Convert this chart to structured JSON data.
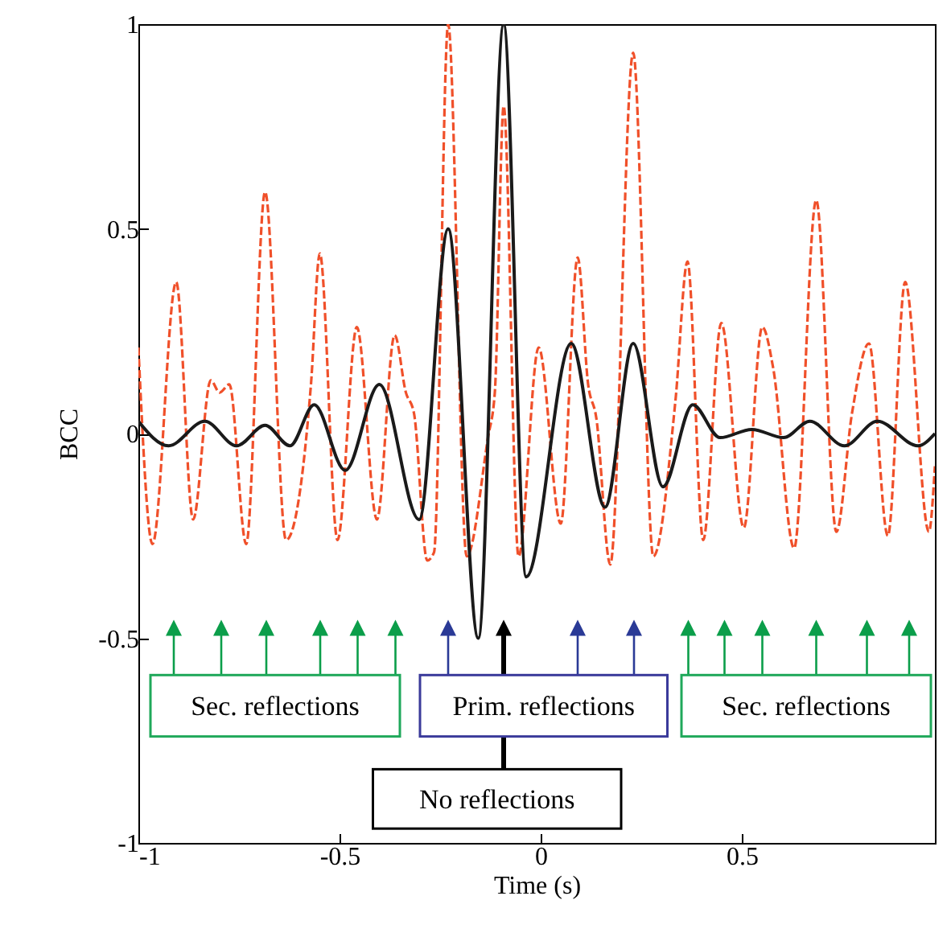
{
  "chart_data": {
    "type": "line",
    "xlabel": "Time (s)",
    "ylabel": "BCC",
    "xlim": [
      -1,
      0.98
    ],
    "ylim": [
      -1,
      1
    ],
    "xticks": [
      -1,
      -0.5,
      0,
      0.5
    ],
    "yticks": [
      -1,
      -0.5,
      0,
      0.5,
      1
    ],
    "annotations": [
      "Sec. reflections",
      "Prim. reflections",
      "Sec. reflections",
      "No reflections"
    ],
    "series": [
      {
        "color": "#f0502a",
        "line_style": "dashed",
        "x": [
          -1.0,
          -0.965,
          -0.906,
          -0.864,
          -0.82,
          -0.798,
          -0.774,
          -0.732,
          -0.685,
          -0.633,
          -0.571,
          -0.549,
          -0.505,
          -0.457,
          -0.407,
          -0.363,
          -0.335,
          -0.315,
          -0.282,
          -0.265,
          -0.23,
          -0.184,
          -0.131,
          -0.114,
          -0.092,
          -0.055,
          -0.005,
          0.05,
          0.092,
          0.118,
          0.138,
          0.173,
          0.23,
          0.28,
          0.335,
          0.365,
          0.404,
          0.449,
          0.505,
          0.551,
          0.578,
          0.63,
          0.685,
          0.735,
          0.774,
          0.816,
          0.863,
          0.906,
          0.965,
          0.98
        ],
        "values": [
          0.21,
          -0.27,
          0.37,
          -0.21,
          0.13,
          0.1,
          0.12,
          -0.27,
          0.59,
          -0.26,
          0.12,
          0.44,
          -0.26,
          0.26,
          -0.21,
          0.24,
          0.1,
          0.05,
          -0.31,
          -0.29,
          1.0,
          -0.3,
          -0.01,
          0.1,
          0.8,
          -0.3,
          0.21,
          -0.22,
          0.43,
          0.12,
          0.04,
          -0.32,
          0.93,
          -0.3,
          0.08,
          0.42,
          -0.26,
          0.27,
          -0.23,
          0.26,
          0.16,
          -0.28,
          0.57,
          -0.24,
          0.05,
          0.22,
          -0.25,
          0.37,
          -0.24,
          -0.08
        ]
      },
      {
        "color": "#1a1a1a",
        "line_style": "solid",
        "x": [
          -1.0,
          -0.925,
          -0.835,
          -0.756,
          -0.685,
          -0.623,
          -0.563,
          -0.486,
          -0.401,
          -0.302,
          -0.23,
          -0.155,
          -0.092,
          -0.036,
          0.076,
          0.16,
          0.23,
          0.304,
          0.378,
          0.446,
          0.525,
          0.604,
          0.669,
          0.755,
          0.837,
          0.938,
          0.98
        ],
        "values": [
          0.03,
          -0.03,
          0.03,
          -0.03,
          0.02,
          -0.03,
          0.07,
          -0.09,
          0.12,
          -0.21,
          0.5,
          -0.5,
          1.0,
          -0.35,
          0.22,
          -0.18,
          0.22,
          -0.13,
          0.07,
          -0.01,
          0.01,
          -0.01,
          0.03,
          -0.03,
          0.03,
          -0.03,
          0.0
        ]
      }
    ]
  }
}
